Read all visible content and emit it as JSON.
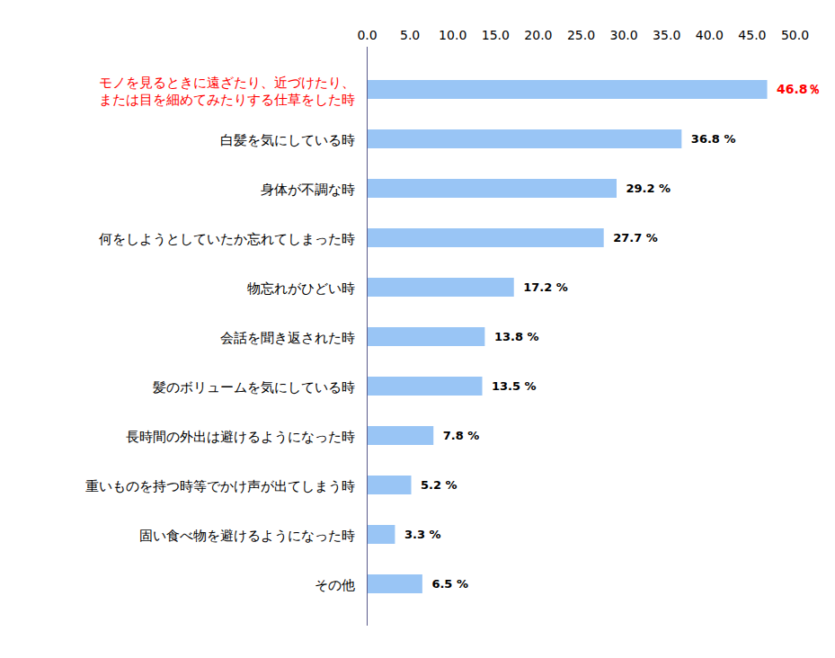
{
  "chart_data": {
    "type": "bar",
    "orientation": "horizontal",
    "categories": [
      "モノを見るときに遠ざたり、近づけたり、\nまたは目を細めてみたりする仕草をした時",
      "白髪を気にしている時",
      "身体が不調な時",
      "何をしようとしていたか忘れてしまった時",
      "物忘れがひどい時",
      "会話を聞き返された時",
      "髪のボリュームを気にしている時",
      "長時間の外出は避けるようになった時",
      "重いものを持つ時等でかけ声が出てしまう時",
      "固い食べ物を避けるようになった時",
      "その他"
    ],
    "values": [
      46.8,
      36.8,
      29.2,
      27.7,
      17.2,
      13.8,
      13.5,
      7.8,
      5.2,
      3.3,
      6.5
    ],
    "value_labels": [
      "46.8％",
      "36.8 %",
      "29.2 %",
      "27.7 %",
      "17.2 %",
      "13.8 %",
      "13.5 %",
      "7.8 %",
      "5.2 %",
      "3.3 %",
      "6.5 %"
    ],
    "data_labels": true,
    "color": "#99c5f5",
    "xlim": [
      0,
      50
    ],
    "xticks": [
      {
        "value": 0,
        "label": "0.0"
      },
      {
        "value": 5,
        "label": "5.0"
      },
      {
        "value": 10,
        "label": "10.0"
      },
      {
        "value": 15,
        "label": "15.0"
      },
      {
        "value": 20,
        "label": "20.0"
      },
      {
        "value": 25,
        "label": "25.0"
      },
      {
        "value": 30,
        "label": "30.0"
      },
      {
        "value": 35,
        "label": "35.0"
      },
      {
        "value": 40,
        "label": "40.0"
      },
      {
        "value": 45,
        "label": "45.0"
      },
      {
        "value": 50,
        "label": "50.0"
      }
    ],
    "grid": false
  }
}
